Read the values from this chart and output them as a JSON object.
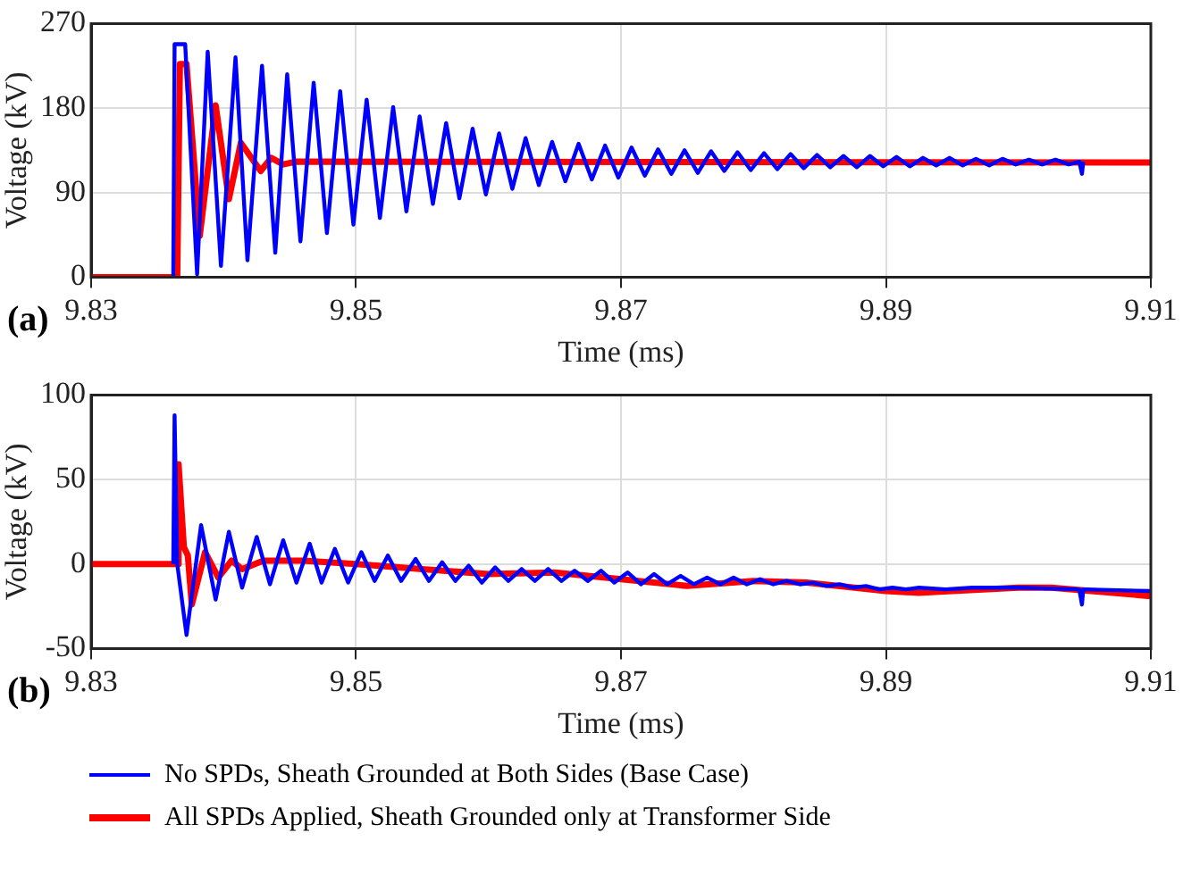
{
  "chart_data": [
    {
      "type": "line",
      "xlabel": "Time (ms)",
      "ylabel": "Voltage (kV)",
      "annotations": [
        "(a)"
      ],
      "xlim": [
        9.83,
        9.91
      ],
      "xticks": [
        9.83,
        9.85,
        9.87,
        9.89,
        9.91
      ],
      "ylim": [
        0,
        270
      ],
      "yticks": [
        0,
        90,
        180,
        270
      ],
      "grid": true,
      "legend": false,
      "marker": "none",
      "line_style": "solid",
      "series": [
        {
          "color": "#0000ff",
          "x": [
            9.8362,
            9.8363,
            9.8371,
            9.838,
            9.8388,
            9.8398,
            9.8409,
            9.8418,
            9.8429,
            9.8439,
            9.8448,
            9.8458,
            9.8468,
            9.8478,
            9.8488,
            9.8498,
            9.8508,
            9.8518,
            9.8528,
            9.8538,
            9.8548,
            9.8558,
            9.8568,
            9.8578,
            9.8588,
            9.8598,
            9.8608,
            9.8618,
            9.8628,
            9.8638,
            9.8648,
            9.8658,
            9.8668,
            9.8678,
            9.8688,
            9.8698,
            9.8708,
            9.8718,
            9.8728,
            9.8738,
            9.8748,
            9.8758,
            9.8768,
            9.8778,
            9.8788,
            9.8798,
            9.8808,
            9.8818,
            9.8828,
            9.8838,
            9.8848,
            9.8858,
            9.8868,
            9.8878,
            9.8888,
            9.8898,
            9.8908,
            9.8918,
            9.8928,
            9.8938,
            9.8948,
            9.8958,
            9.8968,
            9.8978,
            9.8988,
            9.8998,
            9.9008,
            9.9018,
            9.9028,
            9.9038,
            9.9046,
            9.9048,
            9.9049
          ],
          "values": [
            0,
            248,
            248,
            3,
            240,
            12,
            234,
            18,
            225,
            26,
            216,
            38,
            207,
            47,
            198,
            56,
            189,
            63,
            181,
            70,
            171,
            78,
            164,
            84,
            158,
            88,
            153,
            94,
            148,
            98,
            144,
            102,
            142,
            104,
            140,
            106,
            138,
            108,
            136,
            110,
            135,
            111,
            134,
            113,
            133,
            114,
            132,
            115,
            131,
            116,
            130,
            117,
            129,
            117,
            129,
            118,
            128,
            118,
            127,
            119,
            127,
            119,
            126,
            119,
            126,
            120,
            125,
            120,
            125,
            120,
            123,
            110,
            123
          ]
        },
        {
          "color": "#ff0000",
          "x": [
            9.83,
            9.8365,
            9.8367,
            9.8372,
            9.8382,
            9.8394,
            9.8404,
            9.8413,
            9.8428,
            9.8436,
            9.8445,
            9.8455,
            9.91
          ],
          "values": [
            0,
            0,
            227,
            227,
            44,
            183,
            83,
            143,
            113,
            127,
            120,
            123,
            122
          ]
        }
      ]
    },
    {
      "type": "line",
      "xlabel": "Time (ms)",
      "ylabel": "Voltage (kV)",
      "annotations": [
        "(b)"
      ],
      "xlim": [
        9.83,
        9.91
      ],
      "xticks": [
        9.83,
        9.85,
        9.87,
        9.89,
        9.91
      ],
      "ylim": [
        -50,
        100
      ],
      "yticks": [
        -50,
        0,
        50,
        100
      ],
      "grid": true,
      "legend": "bottom",
      "marker": "none",
      "line_style": "solid",
      "series": [
        {
          "name": "No SPDs, Sheath Grounded at Both Sides (Base Case)",
          "color": "#0000ff",
          "x": [
            9.8362,
            9.8363,
            9.8365,
            9.8372,
            9.8383,
            9.8394,
            9.8404,
            9.8414,
            9.8425,
            9.8435,
            9.8445,
            9.8455,
            9.8465,
            9.8474,
            9.8484,
            9.8494,
            9.8504,
            9.8514,
            9.8524,
            9.8534,
            9.8545,
            9.8555,
            9.8565,
            9.8575,
            9.8585,
            9.8595,
            9.8605,
            9.8615,
            9.8625,
            9.8635,
            9.8645,
            9.8655,
            9.8665,
            9.8675,
            9.8685,
            9.8695,
            9.8705,
            9.8715,
            9.8725,
            9.8735,
            9.8745,
            9.8755,
            9.8765,
            9.8775,
            9.8785,
            9.8795,
            9.8805,
            9.8815,
            9.8825,
            9.8835,
            9.8845,
            9.8855,
            9.8865,
            9.8875,
            9.8885,
            9.8895,
            9.8905,
            9.8915,
            9.8925,
            9.8945,
            9.8965,
            9.9,
            9.9046,
            9.9048,
            9.9049,
            9.91
          ],
          "values": [
            0,
            88,
            0,
            -42,
            23,
            -21,
            19,
            -14,
            16,
            -12,
            14,
            -11,
            12,
            -11,
            9,
            -11,
            7,
            -10,
            5,
            -10,
            3,
            -10,
            1,
            -10,
            -1,
            -11,
            -2,
            -10,
            -3,
            -10,
            -3,
            -10,
            -4,
            -10,
            -4,
            -11,
            -5,
            -12,
            -6,
            -12,
            -7,
            -12,
            -8,
            -12,
            -8,
            -12,
            -9,
            -12,
            -10,
            -12,
            -11,
            -13,
            -12,
            -14,
            -13,
            -15,
            -14,
            -15,
            -14,
            -15,
            -14,
            -14,
            -15,
            -24,
            -15,
            -16
          ]
        },
        {
          "name": "All SPDs Applied, Sheath Grounded only at Transformer Side",
          "color": "#ff0000",
          "x": [
            9.83,
            9.8365,
            9.8366,
            9.837,
            9.8373,
            9.8376,
            9.8386,
            9.8396,
            9.8406,
            9.8414,
            9.843,
            9.846,
            9.85,
            9.855,
            9.86,
            9.865,
            9.87,
            9.875,
            9.88,
            9.884,
            9.89,
            9.8925,
            9.895,
            9.9,
            9.9025,
            9.91
          ],
          "values": [
            0,
            0,
            59,
            10,
            5,
            -24,
            7,
            -8,
            2,
            -3,
            2,
            2,
            0,
            -3,
            -6,
            -5,
            -9,
            -13,
            -10,
            -11,
            -16,
            -17,
            -16,
            -14,
            -14,
            -19
          ]
        }
      ]
    }
  ]
}
